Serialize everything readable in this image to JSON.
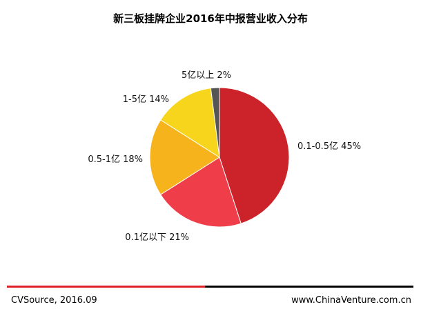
{
  "title": "新三板挂牌企业2016年中报营业收入分布",
  "footer": {
    "source": "CVSource, 2016.09",
    "website": "www.ChinaVenture.com.cn"
  },
  "chart_data": {
    "type": "pie",
    "title": "新三板挂牌企业2016年中报营业收入分布",
    "slices": [
      {
        "label": "0.1-0.5亿 45%",
        "category": "0.1-0.5亿",
        "value": 45,
        "color": "#cc2229"
      },
      {
        "label": "0.1亿以下 21%",
        "category": "0.1亿以下",
        "value": 21,
        "color": "#ef3e4a"
      },
      {
        "label": "0.5-1亿 18%",
        "category": "0.5-1亿",
        "value": 18,
        "color": "#f7b31c"
      },
      {
        "label": "1-5亿 14%",
        "category": "1-5亿",
        "value": 14,
        "color": "#f7d51c"
      },
      {
        "label": "5亿以上 2%",
        "category": "5亿以上",
        "value": 2,
        "color": "#555555"
      }
    ]
  }
}
